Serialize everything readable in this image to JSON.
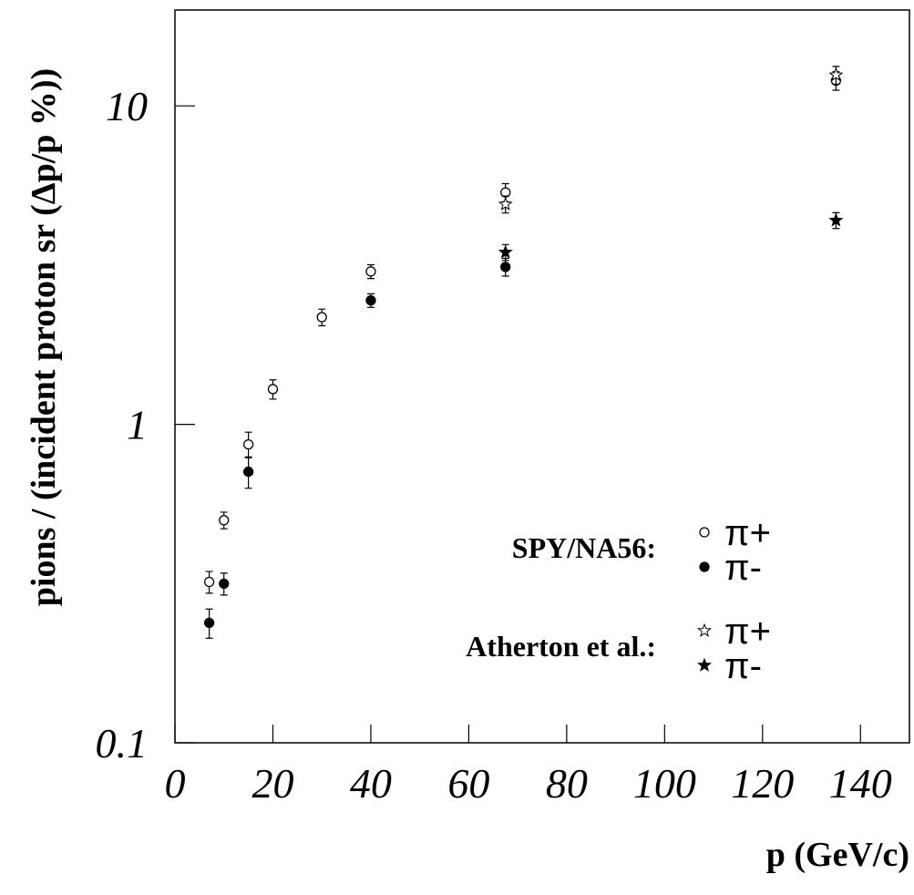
{
  "chart_data": {
    "type": "scatter",
    "y_label": "pions / (incident proton sr (Δp/p %))",
    "x_label": "p (GeV/c)",
    "xlim": [
      0,
      150
    ],
    "xticks": [
      0,
      20,
      40,
      60,
      80,
      100,
      120,
      140
    ],
    "ylim": [
      0.1,
      20
    ],
    "yticks": [
      0.1,
      1,
      10
    ],
    "log_y": true,
    "annotations": [
      "SPY/NA56:",
      "Atherton et al.:"
    ],
    "series": [
      {
        "name": "π+",
        "color": "#000000",
        "marker": "circle-open",
        "x": [
          7,
          10,
          15,
          20,
          30,
          40,
          67.5,
          135
        ],
        "values": [
          0.32,
          0.5,
          0.865,
          1.29,
          2.17,
          3.02,
          5.35,
          12.0
        ],
        "errors": [
          0.025,
          0.03,
          0.08,
          0.09,
          0.13,
          0.15,
          0.35,
          0.8
        ]
      },
      {
        "name": "π-",
        "color": "#000000",
        "marker": "circle-filled",
        "x": [
          7,
          10,
          15,
          40,
          67.5
        ],
        "values": [
          0.238,
          0.316,
          0.71,
          2.45,
          3.12
        ],
        "errors": [
          0.025,
          0.025,
          0.08,
          0.12,
          0.2
        ]
      },
      {
        "name": "π+",
        "color": "#000000",
        "marker": "star-open",
        "x": [
          67.5,
          135
        ],
        "values": [
          4.91,
          12.5
        ],
        "errors": [
          0.3,
          0.8
        ]
      },
      {
        "name": "π-",
        "color": "#000000",
        "marker": "star-filled",
        "x": [
          67.5,
          135
        ],
        "values": [
          3.47,
          4.37
        ],
        "errors": [
          0.2,
          0.25
        ]
      }
    ]
  }
}
